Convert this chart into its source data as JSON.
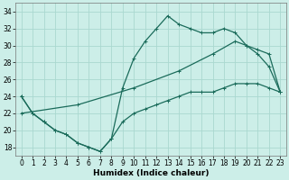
{
  "title": "",
  "xlabel": "Humidex (Indice chaleur)",
  "bg_color": "#cceee8",
  "grid_color": "#aad8d0",
  "line_color": "#1a6b5a",
  "xlim": [
    -0.5,
    23.5
  ],
  "ylim": [
    17,
    35
  ],
  "xticks": [
    0,
    1,
    2,
    3,
    4,
    5,
    6,
    7,
    8,
    9,
    10,
    11,
    12,
    13,
    14,
    15,
    16,
    17,
    18,
    19,
    20,
    21,
    22,
    23
  ],
  "yticks": [
    18,
    20,
    22,
    24,
    26,
    28,
    30,
    32,
    34
  ],
  "curve_upper_x": [
    0,
    1,
    2,
    3,
    4,
    5,
    6,
    7,
    8,
    9,
    10,
    11,
    12,
    13,
    14,
    15,
    16,
    17,
    18,
    19,
    20,
    21,
    22,
    23
  ],
  "curve_upper_y": [
    24,
    22,
    21,
    20,
    19.5,
    18.5,
    18,
    17.5,
    19,
    25,
    28.5,
    30.5,
    32,
    33.5,
    32.5,
    32,
    31.5,
    31.5,
    32,
    31.5,
    30,
    29,
    27.5,
    24.5
  ],
  "curve_mid_x": [
    0,
    5,
    10,
    14,
    17,
    19,
    20,
    21,
    22,
    23
  ],
  "curve_mid_y": [
    22,
    23,
    25,
    27,
    29,
    30.5,
    30,
    29.5,
    29,
    24.5
  ],
  "curve_lower_x": [
    0,
    1,
    2,
    3,
    4,
    5,
    6,
    7,
    8,
    9,
    10,
    11,
    12,
    13,
    14,
    15,
    16,
    17,
    18,
    19,
    20,
    21,
    22,
    23
  ],
  "curve_lower_y": [
    24,
    22,
    21,
    20,
    19.5,
    18.5,
    18,
    17.5,
    19,
    21,
    22,
    22.5,
    23,
    23.5,
    24,
    24.5,
    24.5,
    24.5,
    25,
    25.5,
    25.5,
    25.5,
    25,
    24.5
  ],
  "xlabel_fontsize": 6.5,
  "tick_fontsize": 5.5
}
